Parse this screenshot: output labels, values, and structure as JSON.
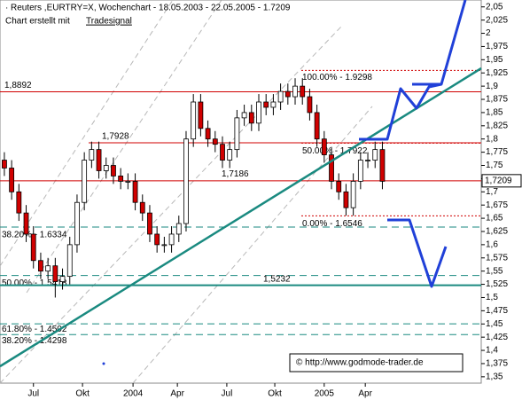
{
  "chart_data": {
    "type": "candlestick",
    "title": "Reuters ,EURTRY=X, Wochenchart - 18.05.2003 - 22.05.2005 - 1.7209",
    "credit": "Chart erstellt mit",
    "credit_link": "Tradesignal",
    "source": "© http://www.godmode-trader.de",
    "x": [
      0,
      2,
      4,
      6,
      8,
      10,
      12,
      14,
      16,
      18,
      20,
      22,
      24,
      26,
      28,
      30,
      32,
      34,
      36,
      38,
      40,
      42,
      44,
      46,
      48,
      50,
      52,
      54,
      56,
      58,
      60,
      62,
      64,
      66,
      68,
      70,
      72,
      74,
      76,
      78,
      80,
      82,
      84,
      86,
      88,
      90,
      92,
      94,
      96,
      98,
      100,
      102,
      104
    ],
    "open": [
      1.76,
      1.745,
      1.7,
      1.66,
      1.62,
      1.57,
      1.55,
      1.56,
      1.53,
      1.54,
      1.6,
      1.68,
      1.76,
      1.78,
      1.74,
      1.75,
      1.73,
      1.72,
      1.72,
      1.68,
      1.66,
      1.62,
      1.6,
      1.6,
      1.62,
      1.64,
      1.8,
      1.87,
      1.82,
      1.8,
      1.79,
      1.76,
      1.78,
      1.84,
      1.85,
      1.83,
      1.87,
      1.86,
      1.87,
      1.89,
      1.88,
      1.9,
      1.88,
      1.85,
      1.8,
      1.77,
      1.72,
      1.7,
      1.67,
      1.72,
      1.76,
      1.76,
      1.78
    ],
    "high": [
      1.775,
      1.76,
      1.715,
      1.675,
      1.635,
      1.585,
      1.575,
      1.575,
      1.555,
      1.615,
      1.695,
      1.775,
      1.795,
      1.795,
      1.765,
      1.765,
      1.745,
      1.735,
      1.735,
      1.695,
      1.675,
      1.635,
      1.615,
      1.635,
      1.655,
      1.815,
      1.885,
      1.885,
      1.835,
      1.815,
      1.805,
      1.795,
      1.855,
      1.865,
      1.865,
      1.885,
      1.885,
      1.885,
      1.905,
      1.905,
      1.915,
      1.915,
      1.895,
      1.865,
      1.815,
      1.785,
      1.735,
      1.715,
      1.735,
      1.775,
      1.775,
      1.795,
      1.795
    ],
    "low": [
      1.73,
      1.685,
      1.645,
      1.605,
      1.555,
      1.535,
      1.535,
      1.5,
      1.515,
      1.525,
      1.585,
      1.665,
      1.745,
      1.725,
      1.725,
      1.715,
      1.705,
      1.705,
      1.665,
      1.645,
      1.605,
      1.585,
      1.585,
      1.585,
      1.605,
      1.625,
      1.785,
      1.805,
      1.785,
      1.775,
      1.745,
      1.745,
      1.765,
      1.825,
      1.815,
      1.815,
      1.845,
      1.845,
      1.855,
      1.865,
      1.865,
      1.865,
      1.835,
      1.785,
      1.755,
      1.705,
      1.685,
      1.655,
      1.655,
      1.705,
      1.745,
      1.745,
      1.705
    ],
    "close": [
      1.745,
      1.7,
      1.66,
      1.62,
      1.57,
      1.55,
      1.56,
      1.53,
      1.54,
      1.6,
      1.68,
      1.76,
      1.78,
      1.74,
      1.75,
      1.73,
      1.72,
      1.72,
      1.68,
      1.66,
      1.62,
      1.6,
      1.6,
      1.62,
      1.64,
      1.8,
      1.87,
      1.82,
      1.8,
      1.79,
      1.76,
      1.78,
      1.84,
      1.85,
      1.83,
      1.87,
      1.86,
      1.87,
      1.89,
      1.88,
      1.9,
      1.88,
      1.85,
      1.8,
      1.77,
      1.72,
      1.7,
      1.67,
      1.72,
      1.76,
      1.76,
      1.78,
      1.72
    ],
    "colors": {
      "up": "#ffffff",
      "down": "#d00000",
      "outline": "#000000"
    },
    "xlim": [
      -1.2,
      131.2
    ],
    "xticks": [
      {
        "value": 8,
        "label": "Jul"
      },
      {
        "value": 21.5,
        "label": "Okt"
      },
      {
        "value": 35.4,
        "label": "2004"
      },
      {
        "value": 47.6,
        "label": "Apr"
      },
      {
        "value": 61.2,
        "label": "Jul"
      },
      {
        "value": 74.4,
        "label": "Okt"
      },
      {
        "value": 88,
        "label": "2005"
      },
      {
        "value": 99.3,
        "label": "Apr"
      }
    ],
    "ylim": [
      1.338,
      2.063
    ],
    "yticks": [
      {
        "value": 2.05,
        "label": "2,05"
      },
      {
        "value": 2.025,
        "label": "2,025"
      },
      2,
      {
        "value": 1.975,
        "label": "1,975"
      },
      {
        "value": 1.95,
        "label": "1,95"
      },
      {
        "value": 1.925,
        "label": "1,925"
      },
      {
        "value": 1.9,
        "label": "1,9"
      },
      {
        "value": 1.875,
        "label": "1,875"
      },
      {
        "value": 1.85,
        "label": "1,85"
      },
      {
        "value": 1.825,
        "label": "1,825"
      },
      {
        "value": 1.8,
        "label": "1,8"
      },
      {
        "value": 1.775,
        "label": "1,775"
      },
      {
        "value": 1.75,
        "label": "1,75"
      },
      {
        "value": 1.725,
        "label": "1,725"
      },
      {
        "value": 1.7,
        "label": "1,7"
      },
      {
        "value": 1.675,
        "label": "1,675"
      },
      {
        "value": 1.65,
        "label": "1,65"
      },
      {
        "value": 1.625,
        "label": "1,625"
      },
      {
        "value": 1.6,
        "label": "1,6"
      },
      {
        "value": 1.575,
        "label": "1,575"
      },
      {
        "value": 1.55,
        "label": "1,55"
      },
      {
        "value": 1.525,
        "label": "1,525"
      },
      {
        "value": 1.5,
        "label": "1,5"
      },
      {
        "value": 1.475,
        "label": "1,475"
      },
      {
        "value": 1.45,
        "label": "1,45"
      },
      {
        "value": 1.425,
        "label": "1,425"
      },
      {
        "value": 1.4,
        "label": "1,4"
      },
      {
        "value": 1.375,
        "label": "1,375"
      },
      {
        "value": 1.35,
        "label": "1,35"
      }
    ],
    "last_price": {
      "value": 1.7209,
      "label": "1,7209"
    },
    "price_lines": [
      {
        "value": 1.8892,
        "label": "1,8892"
      },
      {
        "value": 1.7928,
        "label": "1,7928"
      }
    ],
    "annotations": [
      {
        "value": 1.7186,
        "label": "1,7186"
      }
    ],
    "fib_levels": [
      {
        "value": 1.9298,
        "label": "100.00% - 1.9298"
      },
      {
        "value": 1.7922,
        "label": "50.00% - 1.7922"
      },
      {
        "value": 1.6546,
        "label": "0.00% - 1.6546"
      }
    ],
    "support_levels": [
      {
        "value": 1.6334,
        "label": "38.20% - 1.6334"
      },
      {
        "value": 1.5418,
        "label": "50.00% - 1.5418"
      },
      {
        "value": 1.5232,
        "label": "1,5232"
      },
      {
        "value": 1.4502,
        "label": "61.80% - 1.4502"
      },
      {
        "value": 1.4298,
        "label": "38.20% - 1.4298"
      }
    ]
  }
}
